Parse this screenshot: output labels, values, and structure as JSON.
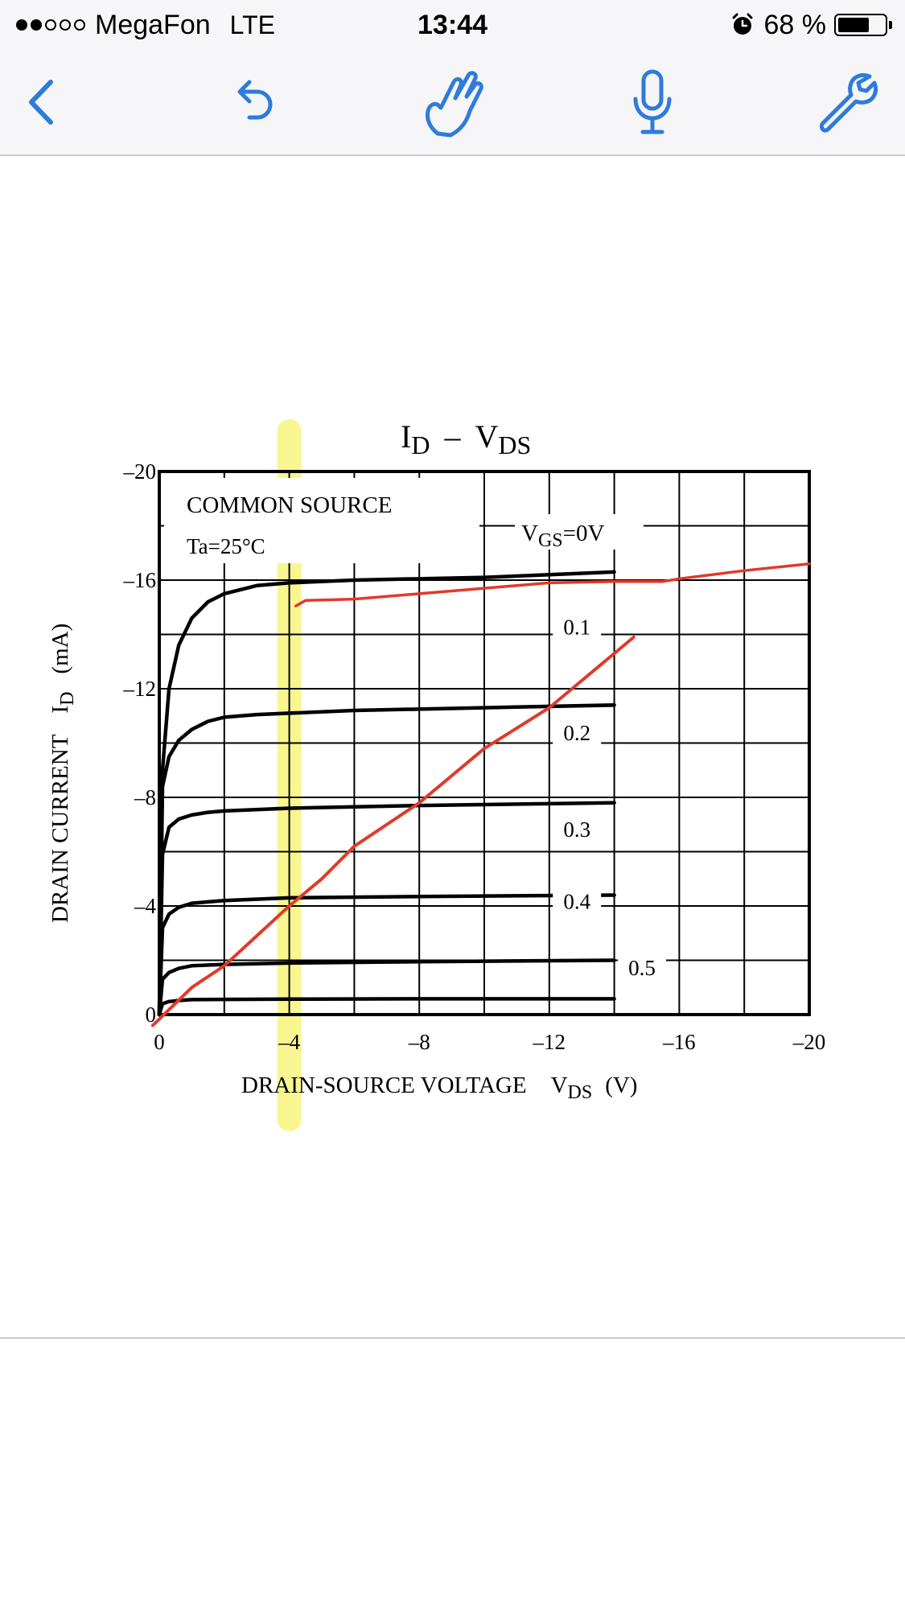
{
  "status_bar": {
    "carrier": "MegaFon",
    "network": "LTE",
    "time": "13:44",
    "battery_percent": "68 %",
    "battery_level": 0.68,
    "signal_bars_filled": 2,
    "signal_bars_total": 5
  },
  "toolbar": {
    "icons": [
      "back-chevron-icon",
      "undo-icon",
      "hand-pointer-icon",
      "microphone-icon",
      "wrench-icon"
    ],
    "accent_color": "#2f7bdc"
  },
  "chart_data": {
    "type": "line",
    "title_main": "I",
    "title_main_sub": "D",
    "title_dash": "–",
    "title_v": "V",
    "title_v_sub": "DS",
    "box_line1": "COMMON SOURCE",
    "box_line2": "Ta=25°C",
    "vgs_label_main": "V",
    "vgs_label_sub": "GS",
    "vgs_label_val": "=0V",
    "xlabel_text": "DRAIN-SOURCE VOLTAGE",
    "xlabel_sym": "V",
    "xlabel_sub": "DS",
    "xlabel_unit": "(V)",
    "ylabel_text": "DRAIN CURRENT",
    "ylabel_sym": "I",
    "ylabel_sub": "D",
    "ylabel_unit": "(mA)",
    "xlim": [
      0,
      -20
    ],
    "ylim": [
      0,
      -20
    ],
    "xticks": [
      0,
      -4,
      -8,
      -12,
      -16,
      -20
    ],
    "xtick_labels": [
      "0",
      "–4",
      "–8",
      "–12",
      "–16",
      "–20"
    ],
    "yticks": [
      0,
      -4,
      -8,
      -12,
      -16,
      -20
    ],
    "ytick_labels": [
      "0",
      "–4",
      "–8",
      "–12",
      "–16",
      "–20"
    ],
    "grid": true,
    "curve_labels": [
      "0.1",
      "0.2",
      "0.3",
      "0.4",
      "0.5"
    ],
    "series": [
      {
        "x": [
          0,
          -0.1,
          -0.3,
          -0.6,
          -1,
          -1.5,
          -2,
          -3,
          -4,
          -6,
          -10,
          -14
        ],
        "y": [
          0,
          -9,
          -12,
          -13.6,
          -14.6,
          -15.2,
          -15.5,
          -15.8,
          -15.9,
          -16,
          -16.1,
          -16.3
        ]
      },
      {
        "x": [
          0,
          -0.1,
          -0.3,
          -0.6,
          -1,
          -1.5,
          -2,
          -3,
          -4,
          -6,
          -10,
          -14
        ],
        "y": [
          0,
          -8.4,
          -9.5,
          -10.1,
          -10.5,
          -10.8,
          -10.95,
          -11.05,
          -11.1,
          -11.2,
          -11.3,
          -11.4
        ]
      },
      {
        "x": [
          0,
          -0.1,
          -0.3,
          -0.6,
          -1,
          -1.5,
          -2,
          -4,
          -8,
          -14
        ],
        "y": [
          0,
          -5.9,
          -6.9,
          -7.2,
          -7.35,
          -7.45,
          -7.5,
          -7.6,
          -7.7,
          -7.8
        ]
      },
      {
        "x": [
          0,
          -0.1,
          -0.3,
          -0.6,
          -1,
          -1.5,
          -2,
          -4,
          -8,
          -14
        ],
        "y": [
          0,
          -3.2,
          -3.7,
          -3.95,
          -4.1,
          -4.15,
          -4.2,
          -4.3,
          -4.35,
          -4.4
        ]
      },
      {
        "x": [
          0,
          -0.1,
          -0.3,
          -0.6,
          -1,
          -2,
          -4,
          -8,
          -14
        ],
        "y": [
          0,
          -1.3,
          -1.55,
          -1.7,
          -1.8,
          -1.85,
          -1.9,
          -1.95,
          -2
        ]
      },
      {
        "x": [
          0,
          -0.1,
          -0.3,
          -0.6,
          -1,
          -2,
          -4,
          -8,
          -14
        ],
        "y": [
          0,
          -0.4,
          -0.48,
          -0.52,
          -0.55,
          -0.56,
          -0.57,
          -0.58,
          -0.58
        ]
      }
    ],
    "annotations": {
      "highlight_color": "#f7f57e",
      "highlight_x": -4,
      "ink_color": "#e03a2a",
      "red_line_x": [
        0.2,
        -1,
        -2,
        -3,
        -4,
        -5,
        -6,
        -8,
        -10,
        -12,
        -13,
        -14.6
      ],
      "red_line_y": [
        0.4,
        -1,
        -1.8,
        -2.9,
        -4,
        -5,
        -6.2,
        -7.8,
        -9.8,
        -11.3,
        -12.3,
        -13.9
      ],
      "red_curve_x": [
        -4.2,
        -4.5,
        -6,
        -8,
        -10,
        -12,
        -14,
        -15.5,
        -16,
        -18,
        -20
      ],
      "red_curve_y": [
        -15.05,
        -15.25,
        -15.3,
        -15.5,
        -15.7,
        -15.9,
        -15.95,
        -15.95,
        -16.05,
        -16.35,
        -16.6
      ]
    }
  }
}
